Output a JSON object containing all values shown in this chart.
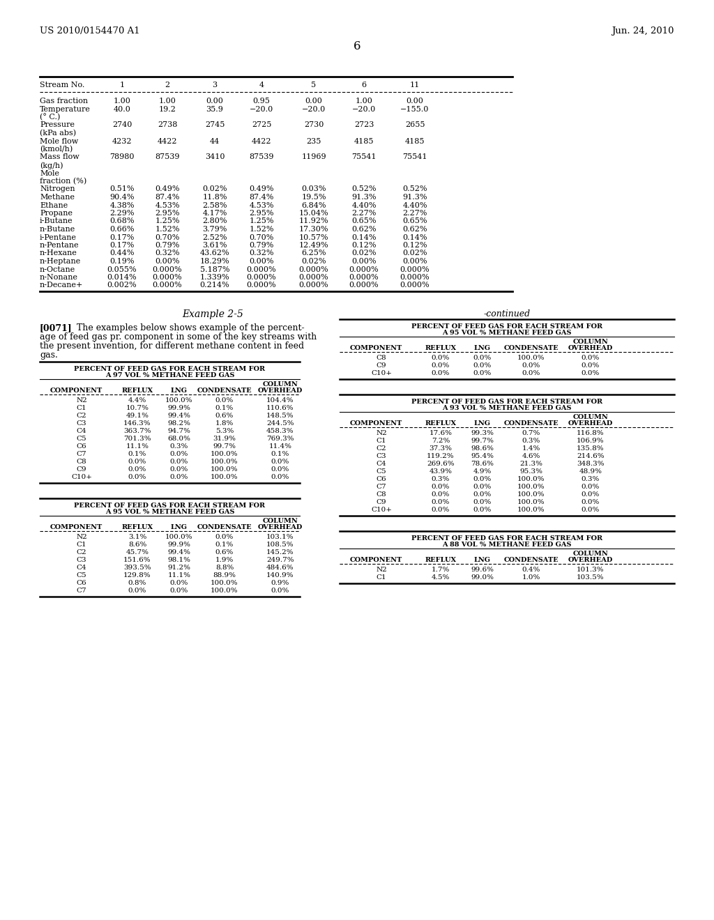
{
  "header_left": "US 2010/0154470 A1",
  "header_right": "Jun. 24, 2010",
  "page_number": "6",
  "table1_rows": [
    [
      "Gas fraction",
      "1.00",
      "1.00",
      "0.00",
      "0.95",
      "0.00",
      "1.00",
      "0.00"
    ],
    [
      "Temperature",
      "40.0",
      "19.2",
      "35.9",
      "−20.0",
      "−20.0",
      "−20.0",
      "−155.0"
    ],
    [
      "(° C.)",
      "",
      "",
      "",
      "",
      "",
      "",
      ""
    ],
    [
      "Pressure",
      "2740",
      "2738",
      "2745",
      "2725",
      "2730",
      "2723",
      "2655"
    ],
    [
      "(kPa abs)",
      "",
      "",
      "",
      "",
      "",
      "",
      ""
    ],
    [
      "Mole flow",
      "4232",
      "4422",
      "44",
      "4422",
      "235",
      "4185",
      "4185"
    ],
    [
      "(kmol/h)",
      "",
      "",
      "",
      "",
      "",
      "",
      ""
    ],
    [
      "Mass flow",
      "78980",
      "87539",
      "3410",
      "87539",
      "11969",
      "75541",
      "75541"
    ],
    [
      "(kg/h)",
      "",
      "",
      "",
      "",
      "",
      "",
      ""
    ],
    [
      "Mole",
      "",
      "",
      "",
      "",
      "",
      "",
      ""
    ],
    [
      "fraction (%)",
      "",
      "",
      "",
      "",
      "",
      "",
      ""
    ],
    [
      "Nitrogen",
      "0.51%",
      "0.49%",
      "0.02%",
      "0.49%",
      "0.03%",
      "0.52%",
      "0.52%"
    ],
    [
      "Methane",
      "90.4%",
      "87.4%",
      "11.8%",
      "87.4%",
      "19.5%",
      "91.3%",
      "91.3%"
    ],
    [
      "Ethane",
      "4.38%",
      "4.53%",
      "2.58%",
      "4.53%",
      "6.84%",
      "4.40%",
      "4.40%"
    ],
    [
      "Propane",
      "2.29%",
      "2.95%",
      "4.17%",
      "2.95%",
      "15.04%",
      "2.27%",
      "2.27%"
    ],
    [
      "i-Butane",
      "0.68%",
      "1.25%",
      "2.80%",
      "1.25%",
      "11.92%",
      "0.65%",
      "0.65%"
    ],
    [
      "n-Butane",
      "0.66%",
      "1.52%",
      "3.79%",
      "1.52%",
      "17.30%",
      "0.62%",
      "0.62%"
    ],
    [
      "i-Pentane",
      "0.17%",
      "0.70%",
      "2.52%",
      "0.70%",
      "10.57%",
      "0.14%",
      "0.14%"
    ],
    [
      "n-Pentane",
      "0.17%",
      "0.79%",
      "3.61%",
      "0.79%",
      "12.49%",
      "0.12%",
      "0.12%"
    ],
    [
      "n-Hexane",
      "0.44%",
      "0.32%",
      "43.62%",
      "0.32%",
      "6.25%",
      "0.02%",
      "0.02%"
    ],
    [
      "n-Heptane",
      "0.19%",
      "0.00%",
      "18.29%",
      "0.00%",
      "0.02%",
      "0.00%",
      "0.00%"
    ],
    [
      "n-Octane",
      "0.055%",
      "0.000%",
      "5.187%",
      "0.000%",
      "0.000%",
      "0.000%",
      "0.000%"
    ],
    [
      "n-Nonane",
      "0.014%",
      "0.000%",
      "1.339%",
      "0.000%",
      "0.000%",
      "0.000%",
      "0.000%"
    ],
    [
      "n-Decane+",
      "0.002%",
      "0.000%",
      "0.214%",
      "0.000%",
      "0.000%",
      "0.000%",
      "0.000%"
    ]
  ],
  "example_title": "Example 2-5",
  "paragraph_lines": [
    "[0071]   The examples below shows example of the percent-",
    "age of feed gas pr. component in some of the key streams with",
    "the present invention, for different methane content in feed",
    "gas."
  ],
  "continued_label": "-continued",
  "t97_title1": "PERCENT OF FEED GAS FOR EACH STREAM FOR",
  "t97_title2": "A 97 VOL % METHANE FEED GAS",
  "t97_rows": [
    [
      "N2",
      "4.4%",
      "100.0%",
      "0.0%",
      "104.4%"
    ],
    [
      "C1",
      "10.7%",
      "99.9%",
      "0.1%",
      "110.6%"
    ],
    [
      "C2",
      "49.1%",
      "99.4%",
      "0.6%",
      "148.5%"
    ],
    [
      "C3",
      "146.3%",
      "98.2%",
      "1.8%",
      "244.5%"
    ],
    [
      "C4",
      "363.7%",
      "94.7%",
      "5.3%",
      "458.3%"
    ],
    [
      "C5",
      "701.3%",
      "68.0%",
      "31.9%",
      "769.3%"
    ],
    [
      "C6",
      "11.1%",
      "0.3%",
      "99.7%",
      "11.4%"
    ],
    [
      "C7",
      "0.1%",
      "0.0%",
      "100.0%",
      "0.1%"
    ],
    [
      "C8",
      "0.0%",
      "0.0%",
      "100.0%",
      "0.0%"
    ],
    [
      "C9",
      "0.0%",
      "0.0%",
      "100.0%",
      "0.0%"
    ],
    [
      "C10+",
      "0.0%",
      "0.0%",
      "100.0%",
      "0.0%"
    ]
  ],
  "t95L_title1": "PERCENT OF FEED GAS FOR EACH STREAM FOR",
  "t95L_title2": "A 95 VOL % METHANE FEED GAS",
  "t95L_rows": [
    [
      "N2",
      "3.1%",
      "100.0%",
      "0.0%",
      "103.1%"
    ],
    [
      "C1",
      "8.6%",
      "99.9%",
      "0.1%",
      "108.5%"
    ],
    [
      "C2",
      "45.7%",
      "99.4%",
      "0.6%",
      "145.2%"
    ],
    [
      "C3",
      "151.6%",
      "98.1%",
      "1.9%",
      "249.7%"
    ],
    [
      "C4",
      "393.5%",
      "91.2%",
      "8.8%",
      "484.6%"
    ],
    [
      "C5",
      "129.8%",
      "11.1%",
      "88.9%",
      "140.9%"
    ],
    [
      "C6",
      "0.8%",
      "0.0%",
      "100.0%",
      "0.9%"
    ],
    [
      "C7",
      "0.0%",
      "0.0%",
      "100.0%",
      "0.0%"
    ]
  ],
  "t95R_title1": "PERCENT OF FEED GAS FOR EACH STREAM FOR",
  "t95R_title2": "A 95 VOL % METHANE FEED GAS",
  "t95R_rows": [
    [
      "C8",
      "0.0%",
      "0.0%",
      "100.0%",
      "0.0%"
    ],
    [
      "C9",
      "0.0%",
      "0.0%",
      "0.0%",
      "0.0%"
    ],
    [
      "C10+",
      "0.0%",
      "0.0%",
      "0.0%",
      "0.0%"
    ]
  ],
  "t93_title1": "PERCENT OF FEED GAS FOR EACH STREAM FOR",
  "t93_title2": "A 93 VOL % METHANE FEED GAS",
  "t93_rows": [
    [
      "N2",
      "17.6%",
      "99.3%",
      "0.7%",
      "116.8%"
    ],
    [
      "C1",
      "7.2%",
      "99.7%",
      "0.3%",
      "106.9%"
    ],
    [
      "C2",
      "37.3%",
      "98.6%",
      "1.4%",
      "135.8%"
    ],
    [
      "C3",
      "119.2%",
      "95.4%",
      "4.6%",
      "214.6%"
    ],
    [
      "C4",
      "269.6%",
      "78.6%",
      "21.3%",
      "348.3%"
    ],
    [
      "C5",
      "43.9%",
      "4.9%",
      "95.3%",
      "48.9%"
    ],
    [
      "C6",
      "0.3%",
      "0.0%",
      "100.0%",
      "0.3%"
    ],
    [
      "C7",
      "0.0%",
      "0.0%",
      "100.0%",
      "0.0%"
    ],
    [
      "C8",
      "0.0%",
      "0.0%",
      "100.0%",
      "0.0%"
    ],
    [
      "C9",
      "0.0%",
      "0.0%",
      "100.0%",
      "0.0%"
    ],
    [
      "C10+",
      "0.0%",
      "0.0%",
      "100.0%",
      "0.0%"
    ]
  ],
  "t88_title1": "PERCENT OF FEED GAS FOR EACH STREAM FOR",
  "t88_title2": "A 88 VOL % METHANE FEED GAS",
  "t88_rows": [
    [
      "N2",
      "1.7%",
      "99.6%",
      "0.4%",
      "101.3%"
    ],
    [
      "C1",
      "4.5%",
      "99.0%",
      "1.0%",
      "103.5%"
    ]
  ]
}
